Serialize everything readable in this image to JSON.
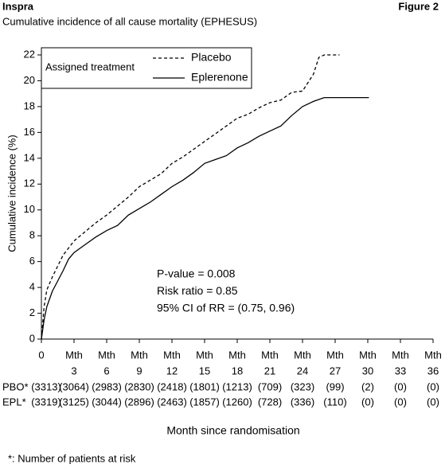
{
  "header": {
    "brand": "Inspra",
    "figure": "Figure 2"
  },
  "chart_data": {
    "type": "line",
    "title": "Cumulative incidence of all cause mortality (EPHESUS)",
    "x_label": "Month since randomisation",
    "y_label": "Cumulative incidence (%)",
    "xlim": [
      0,
      36
    ],
    "xticks": [
      0,
      3,
      6,
      9,
      12,
      15,
      18,
      21,
      24,
      27,
      30,
      33,
      36
    ],
    "x_tick_prefix": "Mth",
    "ylim": [
      0,
      22
    ],
    "yticks": [
      0,
      2,
      4,
      6,
      8,
      10,
      12,
      14,
      16,
      18,
      20,
      22
    ],
    "grid": false,
    "legend_title": "Assigned treatment",
    "series": [
      {
        "name": "Placebo",
        "color": "#000000",
        "dash": "dashed",
        "x": [
          0,
          0.25,
          0.5,
          1,
          2,
          3,
          4,
          5,
          6,
          7,
          8,
          9,
          10,
          11,
          12,
          13,
          14,
          15,
          16,
          17,
          18,
          19,
          20,
          21,
          22,
          23,
          24,
          25,
          25.5,
          26,
          27.4
        ],
        "values": [
          0,
          2.5,
          3.8,
          4.8,
          6.5,
          7.6,
          8.3,
          9.0,
          9.6,
          10.3,
          11.0,
          11.8,
          12.3,
          12.8,
          13.6,
          14.1,
          14.7,
          15.3,
          15.9,
          16.5,
          17.1,
          17.4,
          17.9,
          18.3,
          18.5,
          19.1,
          19.2,
          20.5,
          21.8,
          22.0,
          22.0
        ]
      },
      {
        "name": "Eplerenone",
        "color": "#000000",
        "dash": "solid",
        "x": [
          0,
          0.25,
          0.5,
          1,
          1.5,
          2,
          2.5,
          3,
          4,
          5,
          6,
          7,
          8,
          9,
          10,
          11,
          12,
          13,
          14,
          15,
          16,
          17,
          18,
          19,
          20,
          21,
          22,
          23,
          24,
          25,
          26,
          30.1
        ],
        "values": [
          0,
          1.5,
          2.5,
          3.7,
          4.5,
          5.3,
          6.2,
          6.7,
          7.3,
          7.9,
          8.4,
          8.8,
          9.6,
          10.1,
          10.6,
          11.2,
          11.8,
          12.3,
          12.9,
          13.6,
          13.9,
          14.2,
          14.8,
          15.2,
          15.7,
          16.1,
          16.5,
          17.3,
          18.0,
          18.4,
          18.7,
          18.7
        ]
      }
    ],
    "annotations": [
      "P-value = 0.008",
      "Risk ratio = 0.85",
      "95% CI of RR = (0.75, 0.96)"
    ],
    "risk_table": [
      {
        "label": "PBO*",
        "values": [
          "(3313)",
          "(3064)",
          "(2983)",
          "(2830)",
          "(2418)",
          "(1801)",
          "(1213)",
          "(709)",
          "(323)",
          "(99)",
          "(2)",
          "(0)",
          "(0)"
        ]
      },
      {
        "label": "EPL*",
        "values": [
          "(3319)",
          "(3125)",
          "(3044)",
          "(2896)",
          "(2463)",
          "(1857)",
          "(1260)",
          "(728)",
          "(336)",
          "(110)",
          "(0)",
          "(0)",
          "(0)"
        ]
      }
    ],
    "footnote": "*: Number of patients at risk"
  }
}
